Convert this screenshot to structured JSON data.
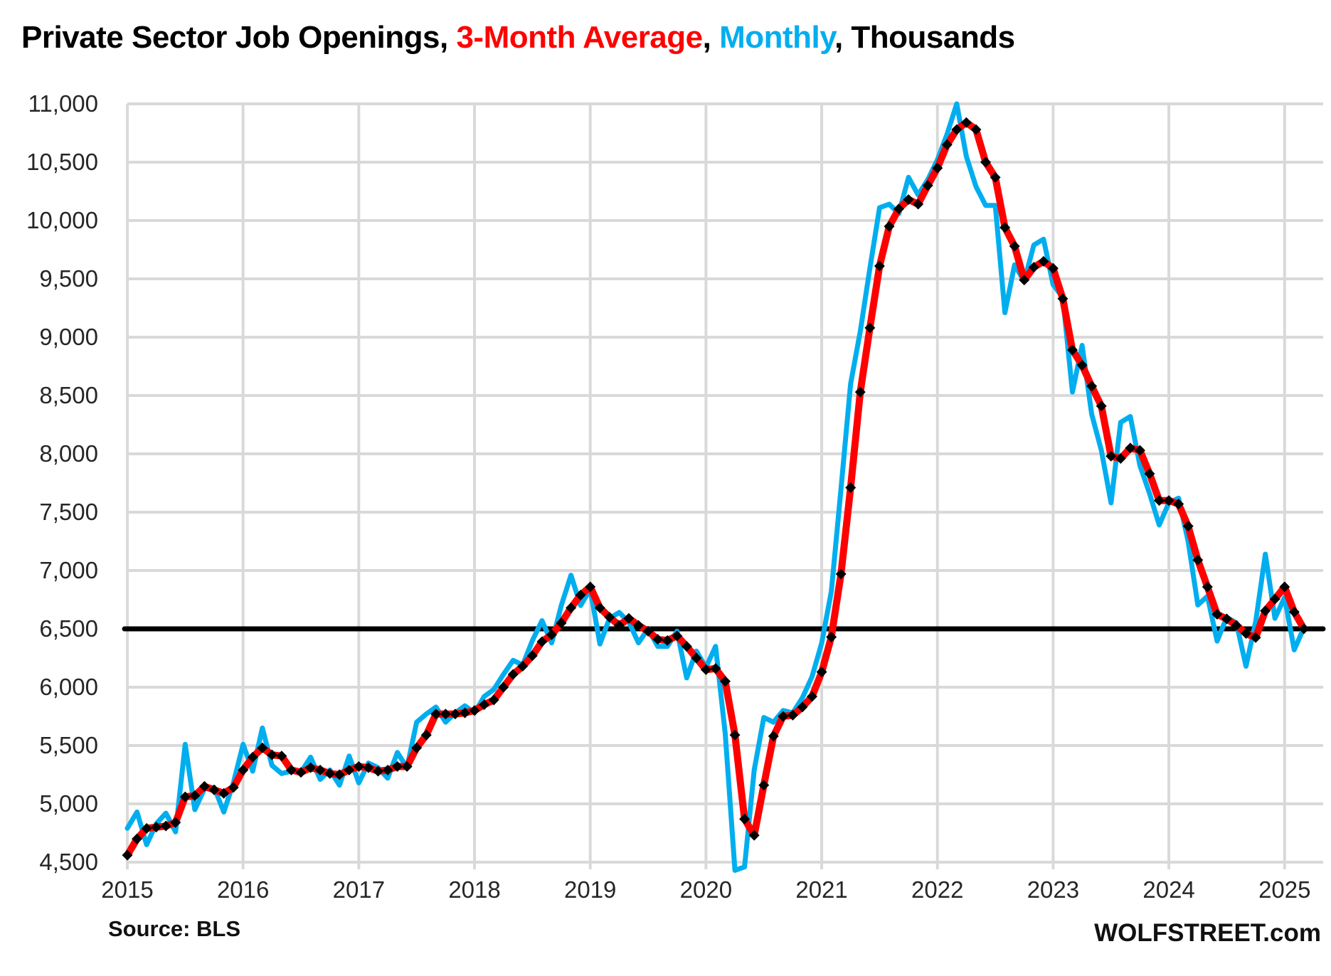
{
  "title": {
    "part1": "Private Sector Job Openings, ",
    "part2": "3-Month Average",
    "part3": ", ",
    "part4": "Monthly",
    "part5": ", Thousands"
  },
  "footer": {
    "source": "Source: BLS",
    "site": "WOLFSTREET.com"
  },
  "colors": {
    "avg3": "#FF0000",
    "monthly": "#00AEEF",
    "reference_line": "#000000",
    "grid": "#D9D9D9",
    "axis_text": "#262626",
    "marker": "#000000"
  },
  "chart_data": {
    "type": "line",
    "title": "Private Sector Job Openings, 3-Month Average, Monthly, Thousands",
    "x_start": "2015-01",
    "x_end": "2025-03",
    "year_labels": [
      "2015",
      "2016",
      "2017",
      "2018",
      "2019",
      "2020",
      "2021",
      "2022",
      "2023",
      "2024",
      "2025"
    ],
    "ylim": [
      4500,
      11000
    ],
    "ytick_step": 500,
    "ytick_labels": [
      "4,500",
      "5,000",
      "5,500",
      "6,000",
      "6,500",
      "7,000",
      "7,500",
      "8,000",
      "8,500",
      "9,000",
      "9,500",
      "10,000",
      "10,500",
      "11,000"
    ],
    "grid": true,
    "legend_position": "in-title",
    "reference_line": 6500,
    "series": [
      {
        "name": "Monthly",
        "color_key": "monthly",
        "values": [
          4790,
          4930,
          4650,
          4830,
          4920,
          4760,
          5510,
          4950,
          5130,
          5140,
          4930,
          5180,
          5510,
          5280,
          5650,
          5330,
          5260,
          5280,
          5270,
          5400,
          5210,
          5290,
          5160,
          5410,
          5180,
          5350,
          5310,
          5220,
          5440,
          5310,
          5700,
          5770,
          5830,
          5700,
          5780,
          5840,
          5780,
          5920,
          5980,
          6110,
          6230,
          6190,
          6400,
          6570,
          6380,
          6700,
          6960,
          6700,
          6840,
          6370,
          6590,
          6640,
          6560,
          6380,
          6500,
          6350,
          6350,
          6480,
          6080,
          6310,
          6170,
          6350,
          5600,
          4430,
          4460,
          5290,
          5740,
          5700,
          5800,
          5780,
          5910,
          6090,
          6380,
          6820,
          7700,
          8600,
          9050,
          9590,
          10110,
          10140,
          10060,
          10370,
          10220,
          10350,
          10520,
          10740,
          11000,
          10550,
          10290,
          10130,
          10130,
          9210,
          9620,
          9480,
          9790,
          9840,
          9450,
          9340,
          8530,
          8930,
          8340,
          8030,
          7580,
          8270,
          8320,
          7900,
          7660,
          7390,
          7580,
          7620,
          7250,
          6705,
          6780,
          6395,
          6600,
          6550,
          6180,
          6560,
          7140,
          6590,
          6770,
          6320,
          6510
        ]
      },
      {
        "name": "3-Month Average",
        "color_key": "avg3",
        "markers": "diamond",
        "values": [
          4560,
          4700,
          4790,
          4800,
          4810,
          4840,
          5060,
          5070,
          5150,
          5120,
          5090,
          5140,
          5290,
          5400,
          5480,
          5420,
          5410,
          5290,
          5270,
          5310,
          5290,
          5260,
          5250,
          5290,
          5320,
          5310,
          5280,
          5290,
          5320,
          5320,
          5480,
          5590,
          5770,
          5770,
          5770,
          5780,
          5800,
          5850,
          5890,
          6000,
          6110,
          6180,
          6270,
          6390,
          6450,
          6550,
          6680,
          6790,
          6860,
          6680,
          6600,
          6530,
          6590,
          6530,
          6480,
          6410,
          6400,
          6440,
          6350,
          6250,
          6150,
          6160,
          6050,
          5590,
          4870,
          4730,
          5160,
          5580,
          5750,
          5760,
          5830,
          5920,
          6130,
          6430,
          6970,
          7710,
          8530,
          9080,
          9610,
          9950,
          10100,
          10180,
          10140,
          10300,
          10450,
          10650,
          10780,
          10840,
          10780,
          10500,
          10370,
          9940,
          9780,
          9490,
          9600,
          9650,
          9590,
          9330,
          8890,
          8760,
          8580,
          8410,
          7980,
          7960,
          8050,
          8030,
          7830,
          7600,
          7600,
          7570,
          7380,
          7090,
          6860,
          6625,
          6585,
          6530,
          6460,
          6425,
          6655,
          6755,
          6860,
          6645,
          6500
        ]
      }
    ]
  }
}
